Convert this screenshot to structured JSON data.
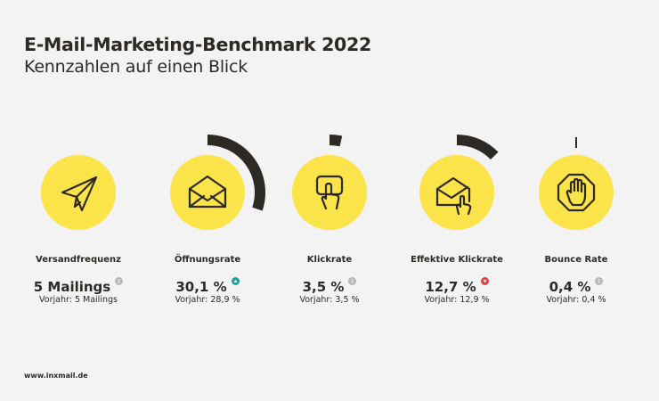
{
  "header": {
    "title": "E-Mail-Marketing-Benchmark 2022",
    "subtitle": "Kennzahlen auf einen Blick"
  },
  "colors": {
    "background": "#f3f3f3",
    "circle": "#fbe34a",
    "arc": "#2d2a26",
    "trend_up": "#1aa39a",
    "trend_down": "#e0463f",
    "trend_neutral": "#b8b8b8",
    "text": "#2d2a26"
  },
  "kpis": [
    {
      "label": "Versandfrequenz",
      "value": "5 Mailings",
      "previous": "Vorjahr: 5 Mailings",
      "icon": "paper-plane-icon",
      "trend": "neutral",
      "percent": null
    },
    {
      "label": "Öffnungsrate",
      "value": "30,1 %",
      "previous": "Vorjahr: 28,9 %",
      "icon": "open-envelope-icon",
      "trend": "up",
      "percent": 30.1
    },
    {
      "label": "Klickrate",
      "value": "3,5 %",
      "previous": "Vorjahr: 3,5 %",
      "icon": "touch-finger-icon",
      "trend": "neutral",
      "percent": 3.5
    },
    {
      "label": "Effektive Klickrate",
      "value": "12,7 %",
      "previous": "Vorjahr: 12,9 %",
      "icon": "envelope-click-icon",
      "trend": "down",
      "percent": 12.7
    },
    {
      "label": "Bounce Rate",
      "value": "0,4 %",
      "previous": "Vorjahr: 0,4 %",
      "icon": "stop-hand-icon",
      "trend": "neutral",
      "percent": 0.4
    }
  ],
  "footer": {
    "url": "www.inxmail.de"
  }
}
